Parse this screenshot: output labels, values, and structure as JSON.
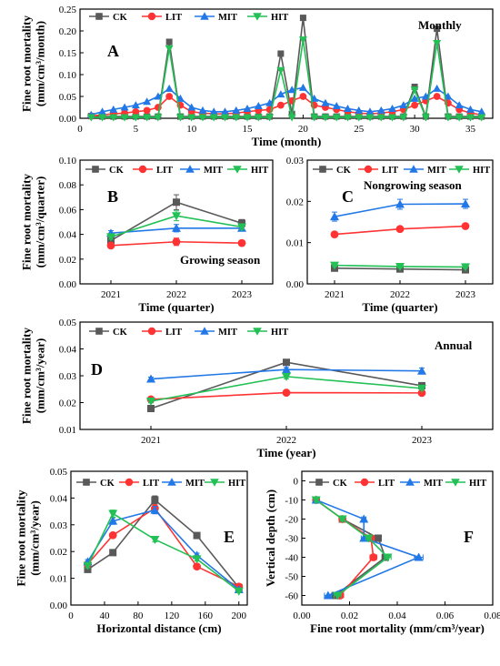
{
  "figure": {
    "series_names": [
      "CK",
      "LIT",
      "MIT",
      "HIT"
    ],
    "colors": {
      "CK": "#595959",
      "LIT": "#ff3333",
      "MIT": "#2278e6",
      "HIT": "#22c055"
    }
  },
  "chart_data": [
    {
      "id": "A",
      "type": "line",
      "panel_label": "A",
      "annotation": "Monthly",
      "xlabel": "Time (month)",
      "ylabel": "Fine root mortality (mm/cm³/month)",
      "xlim": [
        0,
        37
      ],
      "ylim": [
        0,
        0.25
      ],
      "xticks": [
        0,
        5,
        10,
        15,
        20,
        25,
        30,
        35
      ],
      "yticks": [
        0.0,
        0.05,
        0.1,
        0.15,
        0.2,
        0.25
      ],
      "x": [
        1,
        2,
        3,
        4,
        5,
        6,
        7,
        8,
        9,
        10,
        11,
        12,
        13,
        14,
        15,
        16,
        17,
        18,
        19,
        20,
        21,
        22,
        23,
        24,
        25,
        26,
        27,
        28,
        29,
        30,
        31,
        32,
        33,
        34,
        35,
        36
      ],
      "series": [
        {
          "name": "CK",
          "values": [
            0.005,
            0.004,
            0.004,
            0.004,
            0.004,
            0.004,
            0.004,
            0.175,
            0.004,
            0.004,
            0.004,
            0.004,
            0.004,
            0.004,
            0.004,
            0.004,
            0.004,
            0.148,
            0.01,
            0.23,
            0.004,
            0.004,
            0.004,
            0.004,
            0.004,
            0.004,
            0.004,
            0.004,
            0.004,
            0.072,
            0.004,
            0.205,
            0.004,
            0.004,
            0.004,
            0.004
          ]
        },
        {
          "name": "LIT",
          "values": [
            0.005,
            0.008,
            0.01,
            0.012,
            0.015,
            0.018,
            0.025,
            0.05,
            0.03,
            0.015,
            0.012,
            0.01,
            0.01,
            0.012,
            0.015,
            0.018,
            0.02,
            0.03,
            0.04,
            0.05,
            0.03,
            0.025,
            0.02,
            0.015,
            0.012,
            0.01,
            0.012,
            0.015,
            0.02,
            0.03,
            0.04,
            0.05,
            0.035,
            0.02,
            0.012,
            0.008
          ]
        },
        {
          "name": "MIT",
          "values": [
            0.008,
            0.015,
            0.02,
            0.025,
            0.03,
            0.038,
            0.05,
            0.068,
            0.045,
            0.025,
            0.018,
            0.015,
            0.015,
            0.018,
            0.022,
            0.028,
            0.035,
            0.055,
            0.065,
            0.07,
            0.045,
            0.035,
            0.028,
            0.022,
            0.018,
            0.015,
            0.018,
            0.022,
            0.03,
            0.045,
            0.05,
            0.068,
            0.05,
            0.03,
            0.02,
            0.015
          ]
        },
        {
          "name": "HIT",
          "values": [
            0.002,
            0.002,
            0.002,
            0.002,
            0.002,
            0.002,
            0.002,
            0.16,
            0.002,
            0.002,
            0.002,
            0.002,
            0.002,
            0.002,
            0.002,
            0.002,
            0.002,
            0.11,
            0.002,
            0.18,
            0.002,
            0.002,
            0.002,
            0.002,
            0.002,
            0.002,
            0.002,
            0.002,
            0.002,
            0.065,
            0.002,
            0.172,
            0.002,
            0.002,
            0.002,
            0.002
          ]
        }
      ]
    },
    {
      "id": "B",
      "type": "line",
      "panel_label": "B",
      "annotation": "Growing season",
      "xlabel": "Time (quarter)",
      "ylabel": "Fine root mortality (mm/cm³/quarter)",
      "categories": [
        "2021",
        "2022",
        "2023"
      ],
      "ylim": [
        0,
        0.1
      ],
      "yticks": [
        0.0,
        0.02,
        0.04,
        0.06,
        0.08,
        0.1
      ],
      "series": [
        {
          "name": "CK",
          "values": [
            0.035,
            0.066,
            0.049
          ],
          "err": [
            0.002,
            0.006,
            0.003
          ]
        },
        {
          "name": "LIT",
          "values": [
            0.031,
            0.034,
            0.033
          ],
          "err": [
            0.002,
            0.003,
            0.002
          ]
        },
        {
          "name": "MIT",
          "values": [
            0.041,
            0.045,
            0.045
          ],
          "err": [
            0.002,
            0.003,
            0.002
          ]
        },
        {
          "name": "HIT",
          "values": [
            0.038,
            0.055,
            0.046
          ],
          "err": [
            0.002,
            0.004,
            0.002
          ]
        }
      ]
    },
    {
      "id": "C",
      "type": "line",
      "panel_label": "C",
      "annotation": "Nongrowing season",
      "xlabel": "Time (quarter)",
      "ylabel": "",
      "categories": [
        "2021",
        "2022",
        "2023"
      ],
      "ylim": [
        0,
        0.03
      ],
      "yticks": [
        0.0,
        0.01,
        0.02,
        0.03
      ],
      "series": [
        {
          "name": "CK",
          "values": [
            0.0038,
            0.0036,
            0.0034
          ],
          "err": [
            0.0003,
            0.0003,
            0.0003
          ]
        },
        {
          "name": "LIT",
          "values": [
            0.012,
            0.0133,
            0.014
          ],
          "err": [
            0.0004,
            0.0004,
            0.0005
          ]
        },
        {
          "name": "MIT",
          "values": [
            0.0163,
            0.0193,
            0.0194
          ],
          "err": [
            0.0011,
            0.0012,
            0.0011
          ]
        },
        {
          "name": "HIT",
          "values": [
            0.0045,
            0.0042,
            0.0041
          ],
          "err": [
            0.0003,
            0.0003,
            0.0003
          ]
        }
      ]
    },
    {
      "id": "D",
      "type": "line",
      "panel_label": "D",
      "annotation": "Annual",
      "xlabel": "Time (year)",
      "ylabel": "Fine root mortality (mm/cm³/year)",
      "categories": [
        "2021",
        "2022",
        "2023"
      ],
      "ylim": [
        0.01,
        0.05
      ],
      "yticks": [
        0.01,
        0.02,
        0.03,
        0.04,
        0.05
      ],
      "series": [
        {
          "name": "CK",
          "values": [
            0.0178,
            0.035,
            0.0263
          ],
          "err": [
            0.0006,
            0.0008,
            0.0006
          ]
        },
        {
          "name": "LIT",
          "values": [
            0.0212,
            0.0237,
            0.0236
          ],
          "err": [
            0.0006,
            0.0006,
            0.0006
          ]
        },
        {
          "name": "MIT",
          "values": [
            0.0288,
            0.0323,
            0.0318
          ],
          "err": [
            0.0007,
            0.0008,
            0.0011
          ]
        },
        {
          "name": "HIT",
          "values": [
            0.0205,
            0.0297,
            0.0253
          ],
          "err": [
            0.0006,
            0.0008,
            0.0006
          ]
        }
      ]
    },
    {
      "id": "E",
      "type": "line",
      "panel_label": "E",
      "annotation": "",
      "xlabel": "Horizontal distance (cm)",
      "ylabel": "Fine root mortality (mm/cm³/year)",
      "xlim": [
        0,
        210
      ],
      "ylim": [
        0,
        0.05
      ],
      "xticks": [
        0,
        40,
        80,
        120,
        160,
        200
      ],
      "yticks": [
        0.0,
        0.01,
        0.02,
        0.03,
        0.04,
        0.05
      ],
      "x": [
        20,
        50,
        100,
        150,
        200
      ],
      "series": [
        {
          "name": "CK",
          "values": [
            0.0133,
            0.0196,
            0.0393,
            0.026,
            0.0065
          ],
          "err": [
            0.001,
            0.0008,
            0.0015,
            0.0008,
            0.0006
          ]
        },
        {
          "name": "LIT",
          "values": [
            0.0153,
            0.0261,
            0.0362,
            0.0144,
            0.0069
          ],
          "err": [
            0.0008,
            0.0008,
            0.0013,
            0.0006,
            0.0006
          ]
        },
        {
          "name": "MIT",
          "values": [
            0.0162,
            0.0314,
            0.0355,
            0.0186,
            0.0058
          ],
          "err": [
            0.0008,
            0.0012,
            0.0014,
            0.0008,
            0.0006
          ]
        },
        {
          "name": "HIT",
          "values": [
            0.0147,
            0.0342,
            0.0245,
            0.0172,
            0.0052
          ],
          "err": [
            0.0008,
            0.0013,
            0.0009,
            0.0007,
            0.0005
          ]
        }
      ]
    },
    {
      "id": "F",
      "type": "line",
      "panel_label": "F",
      "annotation": "",
      "xlabel": "Fine root mortality (mm/cm³/year)",
      "ylabel": "Vertical depth (cm)",
      "xlim": [
        0,
        0.08
      ],
      "ylim": [
        -65,
        5
      ],
      "xticks": [
        0.0,
        0.02,
        0.04,
        0.06,
        0.08
      ],
      "yticks": [
        0,
        -10,
        -20,
        -30,
        -40,
        -50,
        -60
      ],
      "depth": [
        -10,
        -20,
        -30,
        -40,
        -60
      ],
      "series": [
        {
          "name": "CK",
          "values": [
            0.006,
            0.017,
            0.032,
            0.035,
            0.014
          ],
          "err": [
            0.0006,
            0.0008,
            0.0012,
            0.0014,
            0.0015
          ]
        },
        {
          "name": "LIT",
          "values": [
            0.006,
            0.017,
            0.029,
            0.03,
            0.016
          ],
          "err": [
            0.0006,
            0.0008,
            0.0012,
            0.0014,
            0.0015
          ]
        },
        {
          "name": "MIT",
          "values": [
            0.006,
            0.026,
            0.026,
            0.049,
            0.011
          ],
          "err": [
            0.0006,
            0.0009,
            0.0011,
            0.0018,
            0.0015
          ]
        },
        {
          "name": "HIT",
          "values": [
            0.006,
            0.017,
            0.028,
            0.036,
            0.015
          ],
          "err": [
            0.0006,
            0.0008,
            0.0011,
            0.0014,
            0.0015
          ]
        }
      ]
    }
  ]
}
